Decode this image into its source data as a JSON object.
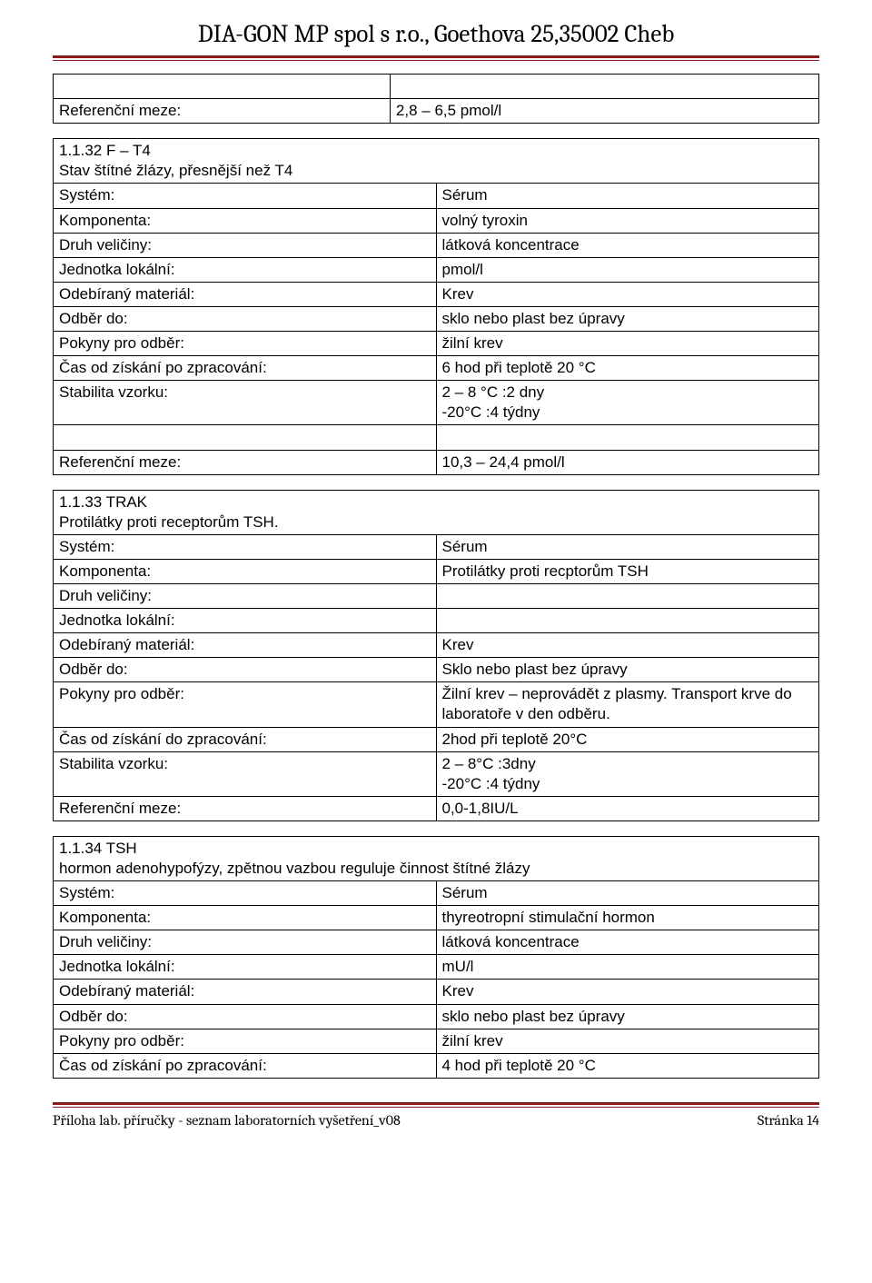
{
  "header": {
    "org_line": "DIA-GON MP spol s r.o., Goethova 25,35002 Cheb"
  },
  "colors": {
    "rule": "#8b1a1a",
    "border": "#000000",
    "text": "#000000",
    "bg": "#ffffff"
  },
  "table_a": {
    "spacer": " ",
    "ref_key": "Referenční meze:",
    "ref_val": "2,8 – 6,5 pmol/l"
  },
  "table_b": {
    "caption": "1.1.32  F – T4\nStav štítné žlázy, přesnější než T4",
    "rows": [
      {
        "k": "Systém:",
        "v": "Sérum"
      },
      {
        "k": "Komponenta:",
        "v": "volný tyroxin"
      },
      {
        "k": "Druh veličiny:",
        "v": "látková koncentrace"
      },
      {
        "k": "Jednotka lokální:",
        "v": "pmol/l"
      },
      {
        "k": "Odebíraný materiál:",
        "v": "Krev"
      },
      {
        "k": "Odběr do:",
        "v": "sklo nebo plast bez úpravy"
      },
      {
        "k": "Pokyny pro odběr:",
        "v": "žilní krev"
      },
      {
        "k": "Čas od získání po zpracování:",
        "v": "6 hod při teplotě 20 °C"
      },
      {
        "k": "Stabilita vzorku:",
        "v": "2 – 8 °C  :2 dny\n-20°C     :4 týdny"
      }
    ],
    "spacer": " ",
    "ref_key": "Referenční meze:",
    "ref_val": "10,3 – 24,4 pmol/l"
  },
  "table_c": {
    "caption": "1.1.33  TRAK\nProtilátky proti receptorům TSH.",
    "rows": [
      {
        "k": "Systém:",
        "v": "Sérum"
      },
      {
        "k": "Komponenta:",
        "v": "Protilátky proti recptorům TSH"
      },
      {
        "k": "Druh veličiny:",
        "v": ""
      },
      {
        "k": "Jednotka lokální:",
        "v": ""
      },
      {
        "k": "Odebíraný materiál:",
        "v": "Krev"
      },
      {
        "k": "Odběr do:",
        "v": "Sklo nebo plast bez úpravy"
      },
      {
        "k": "Pokyny pro odběr:",
        "v": "Žilní krev – neprovádět z plasmy. Transport krve do laboratoře v den odběru."
      },
      {
        "k": "Čas od získání do zpracování:",
        "v": "2hod při teplotě 20°C"
      },
      {
        "k": "Stabilita vzorku:",
        "v": "2 – 8°C    :3dny\n-20°C     :4 týdny"
      },
      {
        "k": "Referenční meze:",
        "v": " 0,0-1,8IU/L"
      }
    ]
  },
  "table_d": {
    "caption": "1.1.34  TSH\nhormon adenohypofýzy, zpětnou vazbou reguluje činnost štítné žlázy",
    "rows": [
      {
        "k": "Systém:",
        "v": "Sérum"
      },
      {
        "k": "Komponenta:",
        "v": "thyreotropní stimulační hormon"
      },
      {
        "k": "Druh veličiny:",
        "v": "látková koncentrace"
      },
      {
        "k": "Jednotka lokální:",
        "v": "mU/l"
      },
      {
        "k": "Odebíraný materiál:",
        "v": "Krev"
      },
      {
        "k": "Odběr do:",
        "v": "sklo nebo plast bez úpravy"
      },
      {
        "k": "Pokyny pro odběr:",
        "v": "žilní krev"
      },
      {
        "k": "Čas od získání po zpracování:",
        "v": "4 hod při teplotě 20 °C"
      }
    ]
  },
  "footer": {
    "left": "Příloha lab. příručky - seznam laboratorních vyšetření_v08",
    "right": "Stránka 14"
  }
}
